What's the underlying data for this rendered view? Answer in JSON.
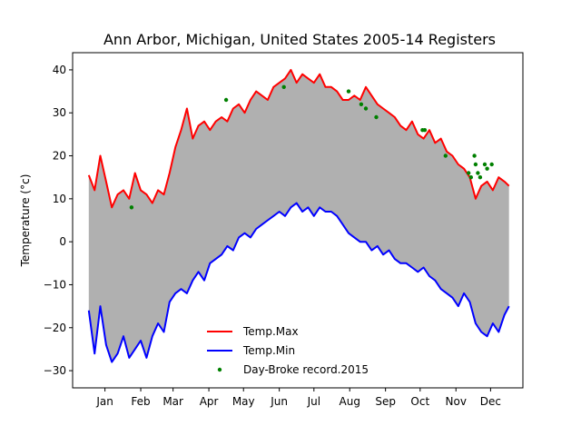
{
  "chart_data": {
    "type": "line",
    "title": "Ann Arbor, Michigan, United States 2005-14 Registers",
    "xlabel": "",
    "ylabel": "Temperature (°c)",
    "x_ticks": [
      "Jan",
      "Feb",
      "Mar",
      "Apr",
      "May",
      "Jun",
      "Jul",
      "Aug",
      "Sep",
      "Oct",
      "Nov",
      "Dec"
    ],
    "x_tick_days": [
      15,
      46,
      74,
      105,
      135,
      166,
      196,
      227,
      258,
      288,
      319,
      349
    ],
    "xlim": [
      -13,
      377
    ],
    "ylim": [
      -34,
      44
    ],
    "y_ticks": [
      -30,
      -20,
      -10,
      0,
      10,
      20,
      30,
      40
    ],
    "fill_between": {
      "color": "#b0b0b0"
    },
    "series": [
      {
        "name": "Temp.Max",
        "color": "#ff0000",
        "x": [
          1,
          6,
          11,
          16,
          21,
          26,
          31,
          36,
          41,
          46,
          51,
          56,
          61,
          66,
          71,
          76,
          81,
          86,
          91,
          96,
          101,
          106,
          111,
          116,
          121,
          126,
          131,
          136,
          141,
          146,
          151,
          156,
          161,
          166,
          171,
          176,
          181,
          186,
          191,
          196,
          201,
          206,
          211,
          216,
          221,
          226,
          231,
          236,
          241,
          246,
          251,
          256,
          261,
          266,
          271,
          276,
          281,
          286,
          291,
          296,
          301,
          306,
          311,
          316,
          321,
          326,
          331,
          336,
          341,
          346,
          351,
          356,
          361,
          365
        ],
        "y": [
          15.5,
          12,
          20,
          14,
          8,
          11,
          12,
          10,
          16,
          12,
          11,
          9,
          12,
          11,
          16,
          22,
          26,
          31,
          24,
          27,
          28,
          26,
          28,
          29,
          28,
          31,
          32,
          30,
          33,
          35,
          34,
          33,
          36,
          37,
          38,
          40,
          37,
          39,
          38,
          37,
          39,
          36,
          36,
          35,
          33,
          33,
          34,
          33,
          36,
          34,
          32,
          31,
          30,
          29,
          27,
          26,
          28,
          25,
          24,
          26,
          23,
          24,
          21,
          20,
          18,
          17,
          15,
          10,
          13,
          14,
          12,
          15,
          14,
          13
        ]
      },
      {
        "name": "Temp.Min",
        "color": "#0000ff",
        "x": [
          1,
          6,
          11,
          16,
          21,
          26,
          31,
          36,
          41,
          46,
          51,
          56,
          61,
          66,
          71,
          76,
          81,
          86,
          91,
          96,
          101,
          106,
          111,
          116,
          121,
          126,
          131,
          136,
          141,
          146,
          151,
          156,
          161,
          166,
          171,
          176,
          181,
          186,
          191,
          196,
          201,
          206,
          211,
          216,
          221,
          226,
          231,
          236,
          241,
          246,
          251,
          256,
          261,
          266,
          271,
          276,
          281,
          286,
          291,
          296,
          301,
          306,
          311,
          316,
          321,
          326,
          331,
          336,
          341,
          346,
          351,
          356,
          361,
          365
        ],
        "y": [
          -16,
          -26,
          -15,
          -24,
          -28,
          -26,
          -22,
          -27,
          -25,
          -23,
          -27,
          -22,
          -19,
          -21,
          -14,
          -12,
          -11,
          -12,
          -9,
          -7,
          -9,
          -5,
          -4,
          -3,
          -1,
          -2,
          1,
          2,
          1,
          3,
          4,
          5,
          6,
          7,
          6,
          8,
          9,
          7,
          8,
          6,
          8,
          7,
          7,
          6,
          4,
          2,
          1,
          0,
          0,
          -2,
          -1,
          -3,
          -2,
          -4,
          -5,
          -5,
          -6,
          -7,
          -6,
          -8,
          -9,
          -11,
          -12,
          -13,
          -15,
          -12,
          -14,
          -19,
          -21,
          -22,
          -19,
          -21,
          -17,
          -15
        ]
      },
      {
        "name": "Day-Broke record.2015",
        "color": "#008000",
        "type": "scatter",
        "x": [
          38,
          120,
          170,
          226,
          237,
          241,
          250,
          290,
          292,
          310,
          330,
          332,
          335,
          336,
          338,
          340,
          344,
          346,
          350
        ],
        "y": [
          8,
          33,
          36,
          35,
          32,
          31,
          29,
          26,
          26,
          20,
          16,
          15,
          20,
          18,
          16,
          15,
          18,
          17,
          18
        ]
      }
    ],
    "legend": {
      "placement": "lower center",
      "entries": [
        "Temp.Max",
        "Temp.Min",
        "Day-Broke record.2015"
      ]
    }
  }
}
